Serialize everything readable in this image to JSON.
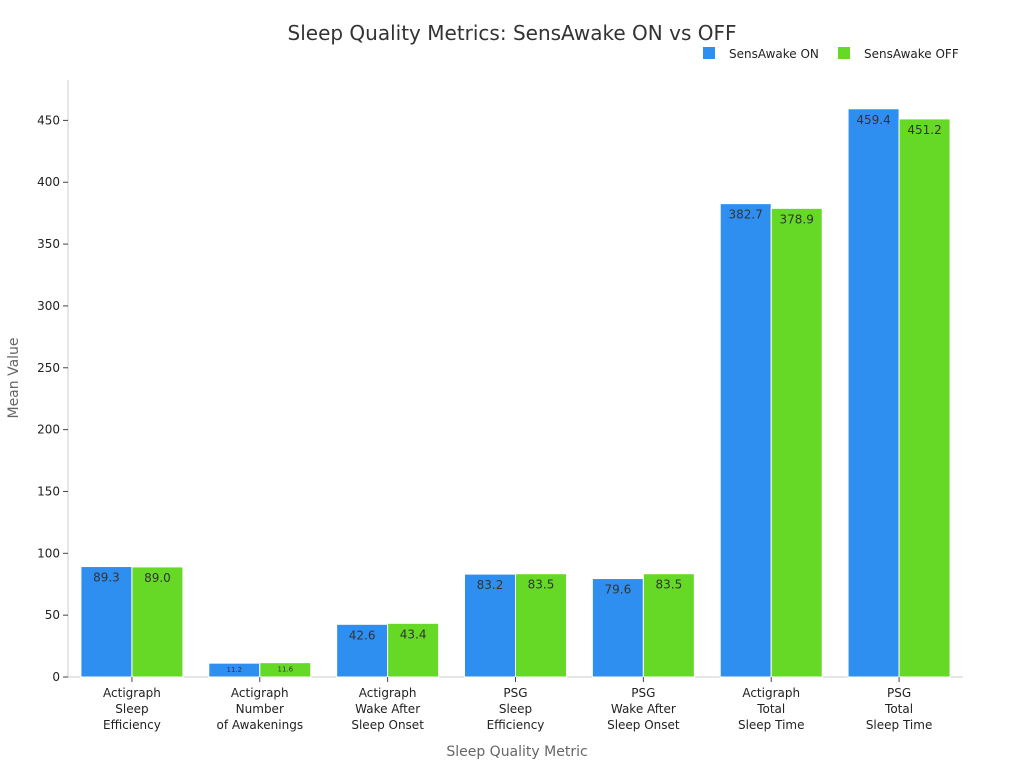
{
  "chart_data": {
    "type": "bar",
    "title": "Sleep Quality Metrics: SensAwake ON vs OFF",
    "xlabel": "Sleep Quality Metric",
    "ylabel": "Mean Value",
    "ylim": [
      0,
      480
    ],
    "yticks": [
      0,
      50,
      100,
      150,
      200,
      250,
      300,
      350,
      400,
      450
    ],
    "grid": false,
    "legend_position": "top-right",
    "categories": [
      [
        "Actigraph",
        "Sleep",
        "Efficiency"
      ],
      [
        "Actigraph",
        "Number",
        "of Awakenings"
      ],
      [
        "Actigraph",
        "Wake After",
        "Sleep Onset"
      ],
      [
        "PSG",
        "Sleep",
        "Efficiency"
      ],
      [
        "PSG",
        "Wake After",
        "Sleep Onset"
      ],
      [
        "Actigraph",
        "Total",
        "Sleep Time"
      ],
      [
        "PSG",
        "Total",
        "Sleep Time"
      ]
    ],
    "series": [
      {
        "name": "SensAwake ON",
        "color": "#2f8ff0",
        "values": [
          89.3,
          11.2,
          42.6,
          83.2,
          79.6,
          382.7,
          459.4
        ],
        "labels": [
          "89.3",
          "11.2",
          "42.6",
          "83.2",
          "79.6",
          "382.7",
          "459.4"
        ]
      },
      {
        "name": "SensAwake OFF",
        "color": "#66d926",
        "values": [
          89.0,
          11.6,
          43.4,
          83.5,
          83.5,
          378.9,
          451.2
        ],
        "labels": [
          "89.0",
          "11.6",
          "43.4",
          "83.5",
          "83.5",
          "378.9",
          "451.2"
        ]
      }
    ]
  }
}
